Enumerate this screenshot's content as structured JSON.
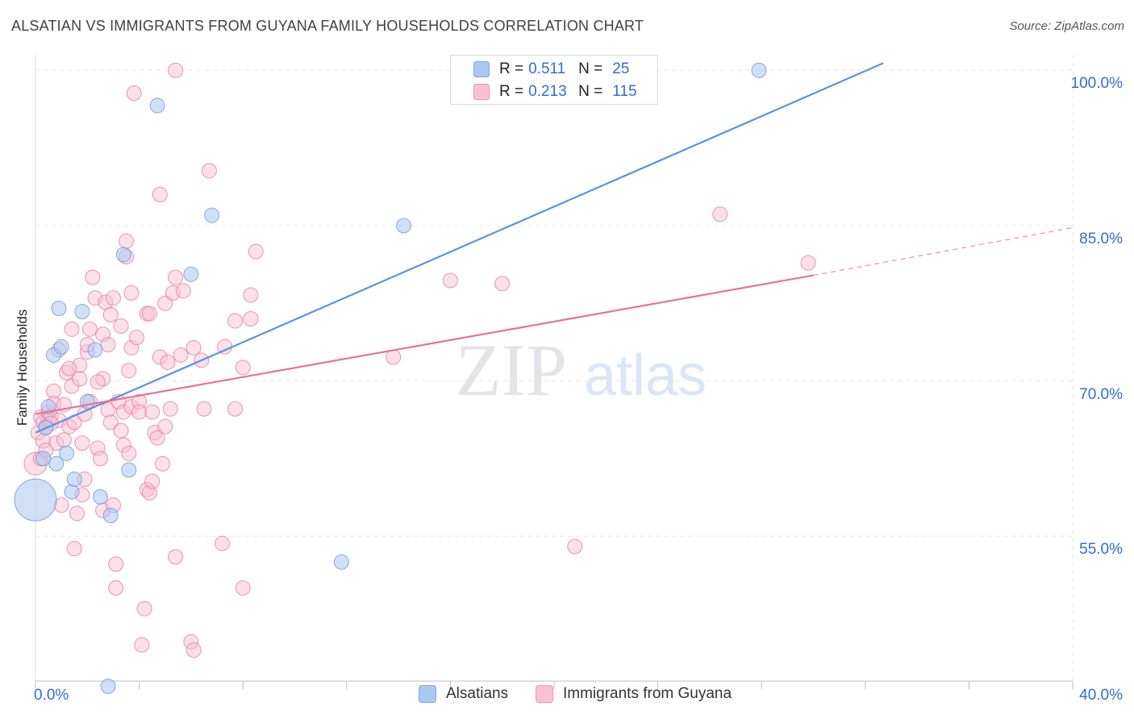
{
  "title": "ALSATIAN VS IMMIGRANTS FROM GUYANA FAMILY HOUSEHOLDS CORRELATION CHART",
  "source": "Source: ZipAtlas.com",
  "watermark": {
    "zip": "ZIP",
    "atlas": "atlas"
  },
  "legend": {
    "r_label": "R =",
    "n_label": "N =",
    "series": [
      {
        "r": "0.511",
        "n": "25",
        "color": "#aac8f0",
        "border": "#7aaae6"
      },
      {
        "r": "0.213",
        "n": "115",
        "color": "#f8c1d2",
        "border": "#ef94b2"
      }
    ]
  },
  "chart_data": {
    "type": "scatter",
    "title": "ALSATIAN VS IMMIGRANTS FROM GUYANA FAMILY HOUSEHOLDS CORRELATION CHART",
    "xlabel": "",
    "ylabel": "Family Households",
    "x_tick_labels": {
      "min": "0.0%",
      "max": "40.0%"
    },
    "xlim": [
      0,
      40
    ],
    "ylim": [
      41,
      101.5
    ],
    "y_ticks": [
      {
        "value": 55,
        "label": "55.0%"
      },
      {
        "value": 70,
        "label": "70.0%"
      },
      {
        "value": 85,
        "label": "85.0%"
      },
      {
        "value": 100,
        "label": "100.0%"
      }
    ],
    "grid": true,
    "series": [
      {
        "name": "Alsatians",
        "color": "#5b93de",
        "fill": "rgba(170,200,240,0.55)",
        "trend": {
          "x0": 0,
          "y0": 65.0,
          "x1": 32.7,
          "y1": 100.7,
          "dashed_to": null
        },
        "points": [
          [
            0.0,
            58.5,
            26
          ],
          [
            0.3,
            62.5,
            9
          ],
          [
            0.4,
            65.5,
            9
          ],
          [
            0.5,
            67.5,
            9
          ],
          [
            0.7,
            72.5,
            9
          ],
          [
            0.8,
            62.0,
            9
          ],
          [
            0.9,
            77.0,
            9
          ],
          [
            1.0,
            73.3,
            9
          ],
          [
            1.2,
            63.0,
            9
          ],
          [
            1.4,
            59.3,
            9
          ],
          [
            1.5,
            60.5,
            9
          ],
          [
            1.8,
            76.7,
            9
          ],
          [
            2.0,
            68.0,
            9
          ],
          [
            2.3,
            73.0,
            9
          ],
          [
            2.5,
            58.8,
            9
          ],
          [
            2.9,
            57.0,
            9
          ],
          [
            3.4,
            82.2,
            9
          ],
          [
            3.6,
            61.4,
            9
          ],
          [
            4.7,
            96.6,
            9
          ],
          [
            6.0,
            80.3,
            9
          ],
          [
            6.8,
            86.0,
            9
          ],
          [
            11.8,
            52.5,
            9
          ],
          [
            14.2,
            85.0,
            9
          ],
          [
            27.9,
            100.0,
            9
          ],
          [
            2.8,
            40.5,
            9
          ]
        ]
      },
      {
        "name": "Immigrants from Guyana",
        "color": "#e8709a",
        "fill": "rgba(248,193,210,0.5)",
        "trend": {
          "x0": 0,
          "y0": 66.8,
          "x1": 30.0,
          "y1": 80.2,
          "dashed_to": {
            "x": 40,
            "y": 84.8
          }
        },
        "points": [
          [
            0.0,
            62.0,
            14
          ],
          [
            0.1,
            65.0,
            9
          ],
          [
            0.2,
            66.5,
            9
          ],
          [
            0.3,
            64.2,
            9
          ],
          [
            0.3,
            66.0,
            9
          ],
          [
            0.4,
            65.5,
            9
          ],
          [
            0.5,
            66.3,
            9
          ],
          [
            0.5,
            67.0,
            9
          ],
          [
            0.6,
            66.6,
            9
          ],
          [
            0.7,
            69.0,
            9
          ],
          [
            0.7,
            67.8,
            9
          ],
          [
            0.8,
            64.0,
            9
          ],
          [
            0.9,
            66.2,
            9
          ],
          [
            0.9,
            73.0,
            9
          ],
          [
            1.0,
            58.0,
            9
          ],
          [
            1.1,
            64.3,
            9
          ],
          [
            1.2,
            70.8,
            9
          ],
          [
            1.3,
            65.6,
            9
          ],
          [
            1.4,
            69.5,
            9
          ],
          [
            1.4,
            75.0,
            9
          ],
          [
            1.5,
            66.0,
            9
          ],
          [
            1.5,
            53.8,
            9
          ],
          [
            1.6,
            57.2,
            9
          ],
          [
            1.7,
            71.5,
            9
          ],
          [
            1.7,
            70.2,
            9
          ],
          [
            1.8,
            64.0,
            9
          ],
          [
            1.8,
            59.0,
            9
          ],
          [
            1.9,
            60.5,
            9
          ],
          [
            2.0,
            72.8,
            9
          ],
          [
            2.0,
            73.5,
            9
          ],
          [
            2.1,
            75.0,
            9
          ],
          [
            2.1,
            68.0,
            9
          ],
          [
            2.2,
            80.0,
            9
          ],
          [
            2.3,
            78.0,
            9
          ],
          [
            2.4,
            63.5,
            9
          ],
          [
            2.5,
            62.5,
            9
          ],
          [
            2.6,
            57.5,
            9
          ],
          [
            2.6,
            74.5,
            9
          ],
          [
            2.6,
            70.2,
            9
          ],
          [
            2.7,
            77.6,
            9
          ],
          [
            2.8,
            73.5,
            9
          ],
          [
            2.8,
            67.2,
            9
          ],
          [
            2.9,
            66.0,
            9
          ],
          [
            3.0,
            78.0,
            9
          ],
          [
            3.0,
            58.0,
            9
          ],
          [
            3.1,
            52.3,
            9
          ],
          [
            3.1,
            50.0,
            9
          ],
          [
            3.2,
            68.0,
            9
          ],
          [
            3.3,
            75.3,
            9
          ],
          [
            3.3,
            65.2,
            9
          ],
          [
            3.4,
            67.0,
            9
          ],
          [
            3.4,
            63.8,
            9
          ],
          [
            3.5,
            83.5,
            9
          ],
          [
            3.5,
            82.0,
            9
          ],
          [
            3.6,
            63.0,
            9
          ],
          [
            3.7,
            73.2,
            9
          ],
          [
            3.7,
            67.5,
            9
          ],
          [
            3.7,
            78.5,
            9
          ],
          [
            3.8,
            97.8,
            9
          ],
          [
            3.9,
            74.2,
            9
          ],
          [
            4.0,
            68.0,
            9
          ],
          [
            4.0,
            67.0,
            9
          ],
          [
            4.1,
            44.5,
            9
          ],
          [
            4.2,
            48.0,
            9
          ],
          [
            4.3,
            59.5,
            9
          ],
          [
            4.3,
            76.5,
            9
          ],
          [
            4.4,
            59.2,
            9
          ],
          [
            4.4,
            76.5,
            9
          ],
          [
            4.5,
            67.0,
            9
          ],
          [
            4.6,
            65.0,
            9
          ],
          [
            4.7,
            64.5,
            9
          ],
          [
            4.8,
            88.0,
            9
          ],
          [
            4.8,
            72.3,
            9
          ],
          [
            4.9,
            62.0,
            9
          ],
          [
            5.0,
            77.5,
            9
          ],
          [
            5.1,
            71.8,
            9
          ],
          [
            5.2,
            67.3,
            9
          ],
          [
            5.3,
            78.5,
            9
          ],
          [
            5.4,
            80.0,
            9
          ],
          [
            5.4,
            53.0,
            9
          ],
          [
            5.4,
            100.0,
            9
          ],
          [
            5.6,
            72.5,
            9
          ],
          [
            5.7,
            78.7,
            9
          ],
          [
            6.0,
            44.8,
            9
          ],
          [
            6.1,
            44.0,
            9
          ],
          [
            6.1,
            73.2,
            9
          ],
          [
            6.4,
            72.0,
            9
          ],
          [
            6.5,
            67.3,
            9
          ],
          [
            6.7,
            90.3,
            9
          ],
          [
            7.2,
            54.3,
            9
          ],
          [
            7.3,
            73.3,
            9
          ],
          [
            7.7,
            67.3,
            9
          ],
          [
            7.7,
            75.8,
            9
          ],
          [
            8.0,
            50.0,
            9
          ],
          [
            8.0,
            71.3,
            9
          ],
          [
            8.3,
            76.0,
            9
          ],
          [
            8.3,
            78.3,
            9
          ],
          [
            8.5,
            82.5,
            9
          ],
          [
            13.8,
            72.3,
            9
          ],
          [
            16.0,
            79.7,
            9
          ],
          [
            18.0,
            79.4,
            9
          ],
          [
            20.8,
            54.0,
            9
          ],
          [
            26.4,
            86.1,
            9
          ],
          [
            29.8,
            81.4,
            9
          ],
          [
            1.1,
            67.7,
            9
          ],
          [
            0.2,
            62.5,
            9
          ],
          [
            0.6,
            65.9,
            9
          ],
          [
            1.9,
            66.8,
            9
          ],
          [
            2.4,
            69.9,
            9
          ],
          [
            3.6,
            71.0,
            9
          ],
          [
            4.5,
            60.3,
            9
          ],
          [
            5.0,
            65.6,
            9
          ],
          [
            1.3,
            71.2,
            9
          ],
          [
            2.9,
            76.4,
            9
          ],
          [
            0.4,
            63.3,
            9
          ]
        ]
      }
    ]
  },
  "bottom_legend": [
    {
      "label": "Alsatians"
    },
    {
      "label": "Immigrants from Guyana"
    }
  ]
}
